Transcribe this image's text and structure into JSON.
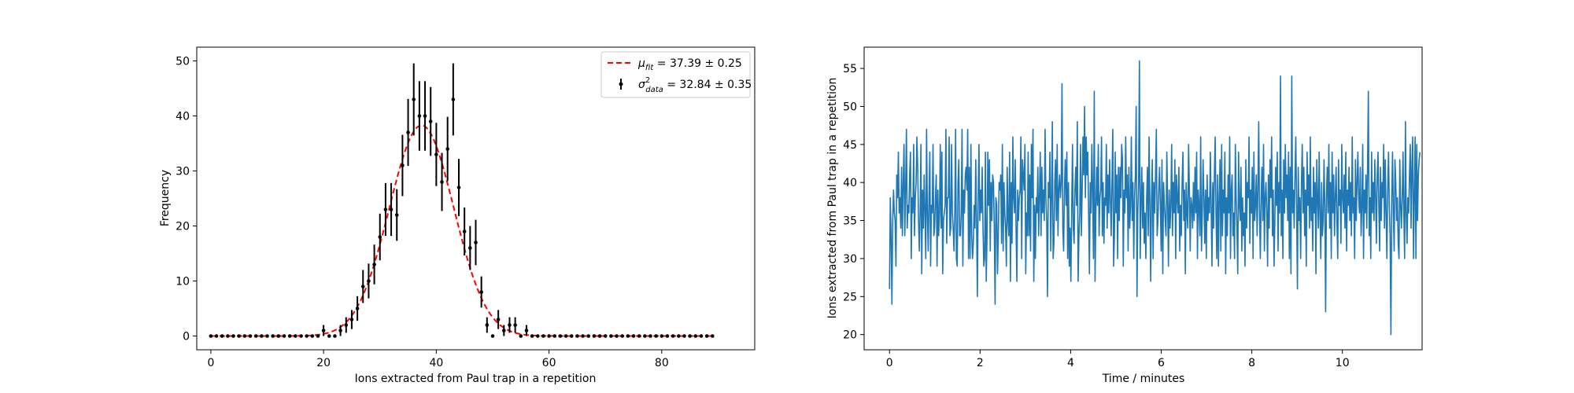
{
  "chart_data": [
    {
      "type": "scatter",
      "xlabel": "Ions extracted from Paul trap in a repetition",
      "ylabel": "Frequency",
      "xlim": [
        -2.5,
        96.5
      ],
      "ylim": [
        -2.5,
        52.5
      ],
      "xticks": [
        0,
        20,
        40,
        60,
        80
      ],
      "yticks": [
        0,
        10,
        20,
        30,
        40,
        50
      ],
      "legend_position": "top-right",
      "legend": {
        "fit": "$\\mu_{fit} = 37.39 \\pm 0.25$",
        "data": "$\\sigma^2_{data} = 32.84 \\pm 0.35$"
      },
      "fit_curve": {
        "mu": 37.39,
        "sigma": 5.73,
        "amplitude": 38.3,
        "color": "#ff0000",
        "style": "dashed"
      },
      "series": [
        {
          "style": "errorbar",
          "color": "#000000",
          "x": [
            0,
            1,
            2,
            3,
            4,
            5,
            6,
            7,
            8,
            9,
            10,
            11,
            12,
            13,
            14,
            15,
            16,
            17,
            18,
            19,
            20,
            21,
            22,
            23,
            24,
            25,
            26,
            27,
            28,
            29,
            30,
            31,
            32,
            33,
            34,
            35,
            36,
            37,
            38,
            39,
            40,
            41,
            42,
            43,
            44,
            45,
            46,
            47,
            48,
            49,
            50,
            51,
            52,
            53,
            54,
            55,
            56,
            57,
            58,
            59,
            60,
            61,
            62,
            63,
            64,
            65,
            66,
            67,
            68,
            69,
            70,
            71,
            72,
            73,
            74,
            75,
            76,
            77,
            78,
            79,
            80,
            81,
            82,
            83,
            84,
            85,
            86,
            87,
            88,
            89
          ],
          "y": [
            0,
            0,
            0,
            0,
            0,
            0,
            0,
            0,
            0,
            0,
            0,
            0,
            0,
            0,
            0,
            0,
            0,
            0,
            0,
            0,
            1,
            0,
            0,
            1,
            2,
            3,
            5,
            9,
            10,
            13,
            18,
            23,
            23,
            22,
            31,
            37,
            43,
            40,
            40,
            39,
            33,
            28,
            34,
            43,
            27,
            19,
            16,
            17,
            8,
            2,
            0,
            3,
            1,
            2,
            2,
            0,
            1,
            0,
            0,
            0,
            0,
            0,
            0,
            0,
            0,
            0,
            0,
            0,
            0,
            0,
            0,
            0,
            0,
            0,
            0,
            0,
            0,
            0,
            0,
            0,
            0,
            0,
            0,
            0,
            0,
            0,
            0,
            0,
            0,
            0
          ]
        }
      ]
    },
    {
      "type": "line",
      "xlabel": "Time / minutes",
      "ylabel": "Ions extracted from Paul trap in a repetition",
      "xlim": [
        -0.56,
        11.76
      ],
      "ylim": [
        18,
        57.8
      ],
      "xticks": [
        0,
        2,
        4,
        6,
        8,
        10
      ],
      "yticks": [
        20,
        25,
        30,
        35,
        40,
        45,
        50,
        55
      ],
      "series": [
        {
          "color": "#1f77b4",
          "x_start": 0,
          "x_step": 0.0178,
          "y": [
            26,
            38,
            33,
            24,
            35,
            39,
            36,
            35,
            29,
            41,
            38,
            44,
            36,
            38,
            34,
            42,
            33,
            40,
            45,
            33,
            39,
            47,
            34,
            37,
            36,
            41,
            44,
            30,
            38,
            36,
            45,
            33,
            38,
            40,
            46,
            42,
            35,
            31,
            36,
            45,
            28,
            39,
            34,
            41,
            36,
            30,
            47,
            36,
            31,
            38,
            44,
            29,
            37,
            36,
            45,
            33,
            34,
            38,
            41,
            29,
            39,
            33,
            36,
            45,
            34,
            44,
            28,
            35,
            36,
            37,
            47,
            32,
            38,
            38,
            46,
            33,
            34,
            45,
            36,
            34,
            31,
            36,
            47,
            30,
            29,
            40,
            43,
            33,
            33,
            36,
            47,
            29,
            39,
            36,
            41,
            42,
            39,
            47,
            30,
            42,
            30,
            45,
            33,
            30,
            32,
            37,
            34,
            43,
            35,
            25,
            38,
            45,
            35,
            39,
            36,
            42,
            34,
            29,
            30,
            44,
            27,
            33,
            44,
            37,
            43,
            31,
            40,
            35,
            41,
            40,
            34,
            24,
            38,
            37,
            28,
            33,
            40,
            39,
            41,
            32,
            45,
            31,
            40,
            36,
            34,
            29,
            42,
            35,
            33,
            44,
            27,
            40,
            32,
            46,
            38,
            36,
            43,
            34,
            27,
            39,
            35,
            38,
            39,
            46,
            30,
            43,
            41,
            39,
            45,
            28,
            36,
            33,
            44,
            33,
            41,
            31,
            45,
            38,
            47,
            27,
            37,
            30,
            38,
            36,
            42,
            33,
            38,
            44,
            33,
            42,
            36,
            39,
            35,
            47,
            38,
            35,
            25,
            40,
            38,
            44,
            31,
            38,
            48,
            30,
            32,
            40,
            43,
            35,
            45,
            33,
            39,
            41,
            38,
            40,
            53,
            34,
            31,
            39,
            43,
            37,
            44,
            30,
            40,
            29,
            34,
            27,
            36,
            45,
            34,
            32,
            39,
            42,
            37,
            48,
            27,
            33,
            36,
            45,
            33,
            39,
            46,
            41,
            50,
            38,
            46,
            41,
            44,
            36,
            28,
            40,
            36,
            45,
            39,
            30,
            52,
            27,
            36,
            42,
            37,
            45,
            33,
            38,
            39,
            46,
            33,
            40,
            32,
            38,
            37,
            45,
            34,
            41,
            36,
            43,
            38,
            33,
            40,
            47,
            29,
            33,
            44,
            36,
            41,
            30,
            42,
            35,
            42,
            38,
            45,
            43,
            29,
            39,
            36,
            46,
            38,
            41,
            31,
            42,
            34,
            37,
            46,
            35,
            40,
            30,
            38,
            41,
            50,
            25,
            36,
            40,
            56,
            30,
            37,
            42,
            34,
            40,
            32,
            36,
            30,
            38,
            42,
            33,
            46,
            37,
            27,
            38,
            43,
            30,
            40,
            36,
            41,
            47,
            33,
            35,
            39,
            42,
            37,
            31,
            43,
            28,
            40,
            37,
            35,
            33,
            44,
            38,
            29,
            39,
            34,
            37,
            45,
            33,
            40,
            36,
            43,
            30,
            41,
            38,
            36,
            42,
            31,
            37,
            33,
            40,
            44,
            35,
            39,
            28,
            40,
            36,
            34,
            45,
            39,
            31,
            38,
            37,
            34,
            40,
            35,
            42,
            36,
            44,
            30,
            39,
            37,
            33,
            46,
            31,
            36,
            43,
            38,
            32,
            39,
            30,
            41,
            35,
            38,
            36,
            44,
            37,
            29,
            40,
            34,
            41,
            46,
            36,
            30,
            41,
            29,
            38,
            43,
            31,
            45,
            33,
            39,
            36,
            44,
            28,
            38,
            33,
            41,
            36,
            46,
            30,
            39,
            41,
            33,
            36,
            30,
            45,
            38,
            34,
            28,
            44,
            37,
            35,
            42,
            31,
            38,
            33,
            36,
            29,
            43,
            34,
            40,
            38,
            46,
            32,
            39,
            36,
            42,
            30,
            44,
            35,
            37,
            41,
            33,
            39,
            48,
            36,
            30,
            38,
            42,
            35,
            45,
            31,
            38,
            40,
            36,
            29,
            41,
            34,
            43,
            38,
            46,
            33,
            39,
            29,
            35,
            42,
            37,
            44,
            31,
            40,
            36,
            54,
            33,
            39,
            30,
            43,
            36,
            45,
            38,
            41,
            35,
            44,
            30,
            42,
            28,
            54,
            36,
            39,
            34,
            41,
            46,
            37,
            26,
            42,
            35,
            38,
            30,
            40,
            45,
            36,
            42,
            33,
            39,
            29,
            44,
            37,
            41,
            34,
            46,
            35,
            38,
            31,
            42,
            36,
            40,
            28,
            43,
            38,
            34,
            44,
            36,
            30,
            40,
            33,
            35,
            43,
            37,
            23,
            38,
            42,
            36,
            45,
            34,
            40,
            30,
            44,
            36,
            41,
            33,
            38,
            42,
            35,
            30,
            43,
            37,
            39,
            32,
            45,
            38,
            36,
            41,
            34,
            44,
            31,
            39,
            37,
            42,
            35,
            40,
            33,
            46,
            36,
            38,
            30,
            43,
            35,
            40,
            44,
            38,
            36,
            42,
            33,
            37,
            45,
            30,
            39,
            36,
            41,
            34,
            42,
            52,
            33,
            38,
            30,
            44,
            36,
            40,
            35,
            43,
            38,
            32,
            41,
            44,
            37,
            31,
            42,
            35,
            40,
            38,
            45,
            34,
            43,
            36,
            30,
            39,
            44,
            37,
            33,
            20,
            38,
            44,
            36,
            31,
            43,
            40,
            35,
            38,
            32,
            30,
            43,
            37,
            34,
            38,
            44,
            36,
            30,
            48,
            36,
            32,
            38,
            36,
            41,
            45,
            34,
            42,
            46,
            30,
            38,
            46,
            30,
            45,
            35,
            41,
            43,
            44
          ]
        }
      ]
    }
  ]
}
